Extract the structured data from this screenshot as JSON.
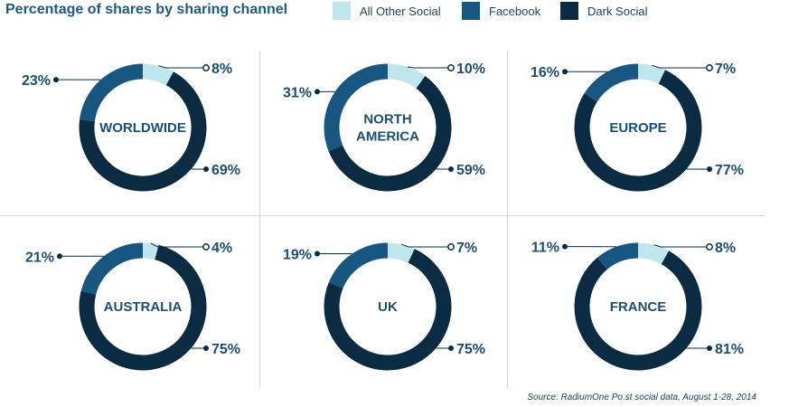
{
  "title": "Percentage of shares by sharing channel",
  "legend": [
    {
      "label": "All Other Social",
      "color": "#bfe6ed"
    },
    {
      "label": "Facebook",
      "color": "#175680"
    },
    {
      "label": "Dark Social",
      "color": "#0a2b41"
    }
  ],
  "source": "Source: RadiumOne Po.st social data, August 1-28, 2014",
  "chart_data": [
    {
      "type": "pie",
      "region": [
        "WORLDWIDE"
      ],
      "series": [
        "All Other Social",
        "Facebook",
        "Dark Social"
      ],
      "values": [
        8,
        23,
        69
      ],
      "labels": [
        "8%",
        "23%",
        "69%"
      ]
    },
    {
      "type": "pie",
      "region": [
        "NORTH",
        "AMERICA"
      ],
      "series": [
        "All Other Social",
        "Facebook",
        "Dark Social"
      ],
      "values": [
        10,
        31,
        59
      ],
      "labels": [
        "10%",
        "31%",
        "59%"
      ]
    },
    {
      "type": "pie",
      "region": [
        "EUROPE"
      ],
      "series": [
        "All Other Social",
        "Facebook",
        "Dark Social"
      ],
      "values": [
        7,
        16,
        77
      ],
      "labels": [
        "7%",
        "16%",
        "77%"
      ]
    },
    {
      "type": "pie",
      "region": [
        "AUSTRALIA"
      ],
      "series": [
        "All Other Social",
        "Facebook",
        "Dark Social"
      ],
      "values": [
        4,
        21,
        75
      ],
      "labels": [
        "4%",
        "21%",
        "75%"
      ]
    },
    {
      "type": "pie",
      "region": [
        "UK"
      ],
      "series": [
        "All Other Social",
        "Facebook",
        "Dark Social"
      ],
      "values": [
        7,
        19,
        75
      ],
      "labels": [
        "7%",
        "19%",
        "75%"
      ]
    },
    {
      "type": "pie",
      "region": [
        "FRANCE"
      ],
      "series": [
        "All Other Social",
        "Facebook",
        "Dark Social"
      ],
      "values": [
        8,
        11,
        81
      ],
      "labels": [
        "8%",
        "11%",
        "81%"
      ]
    }
  ]
}
